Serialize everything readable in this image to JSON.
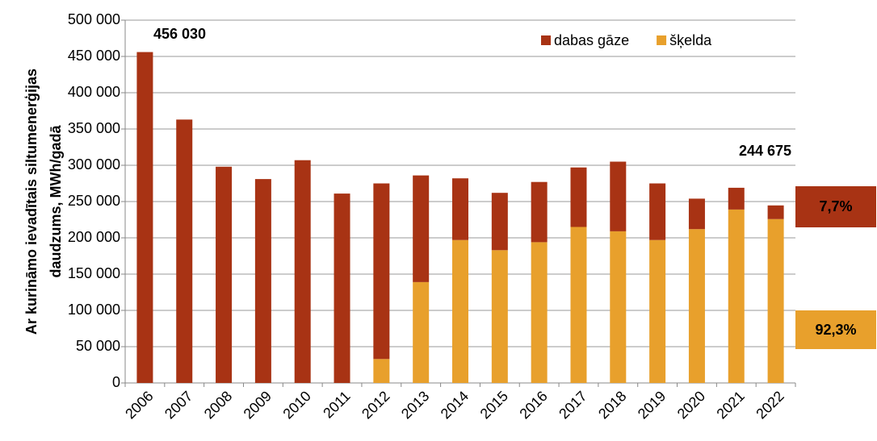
{
  "chart_data": {
    "type": "bar",
    "stacked": true,
    "y_label": [
      "Ar kurināmo ievadītais siltumenerģijas",
      "daudzums, MWh/gadā"
    ],
    "categories": [
      "2006",
      "2007",
      "2008",
      "2009",
      "2010",
      "2011",
      "2012",
      "2013",
      "2014",
      "2015",
      "2016",
      "2017",
      "2018",
      "2019",
      "2020",
      "2021",
      "2022"
    ],
    "series": [
      {
        "name": "dabas gāze",
        "color": "#a83314",
        "values": [
          456030,
          363000,
          298000,
          281000,
          307000,
          261000,
          242000,
          147000,
          85000,
          79000,
          83000,
          82000,
          96000,
          78000,
          42000,
          30000,
          18840
        ]
      },
      {
        "name": "šķelda",
        "color": "#e8a02c",
        "values": [
          0,
          0,
          0,
          0,
          0,
          0,
          33000,
          139000,
          197000,
          183000,
          194000,
          215000,
          209000,
          197000,
          212000,
          239000,
          225835
        ]
      }
    ],
    "ylim": [
      0,
      500000
    ],
    "yticks": [
      0,
      {
        "value": 50000,
        "label": "50 000"
      },
      {
        "value": 100000,
        "label": "100 000"
      },
      {
        "value": 150000,
        "label": "150 000"
      },
      {
        "value": 200000,
        "label": "200 000"
      },
      {
        "value": 250000,
        "label": "250 000"
      },
      {
        "value": 300000,
        "label": "300 000"
      },
      {
        "value": 350000,
        "label": "350 000"
      },
      {
        "value": 400000,
        "label": "400 000"
      },
      {
        "value": 450000,
        "label": "450 000"
      },
      {
        "value": 500000,
        "label": "500 000"
      }
    ],
    "grid": true,
    "legend": "top-right",
    "annotations": [
      "456 030",
      "244 675"
    ],
    "share_labels": [
      "7,7%",
      "92,3%"
    ]
  }
}
